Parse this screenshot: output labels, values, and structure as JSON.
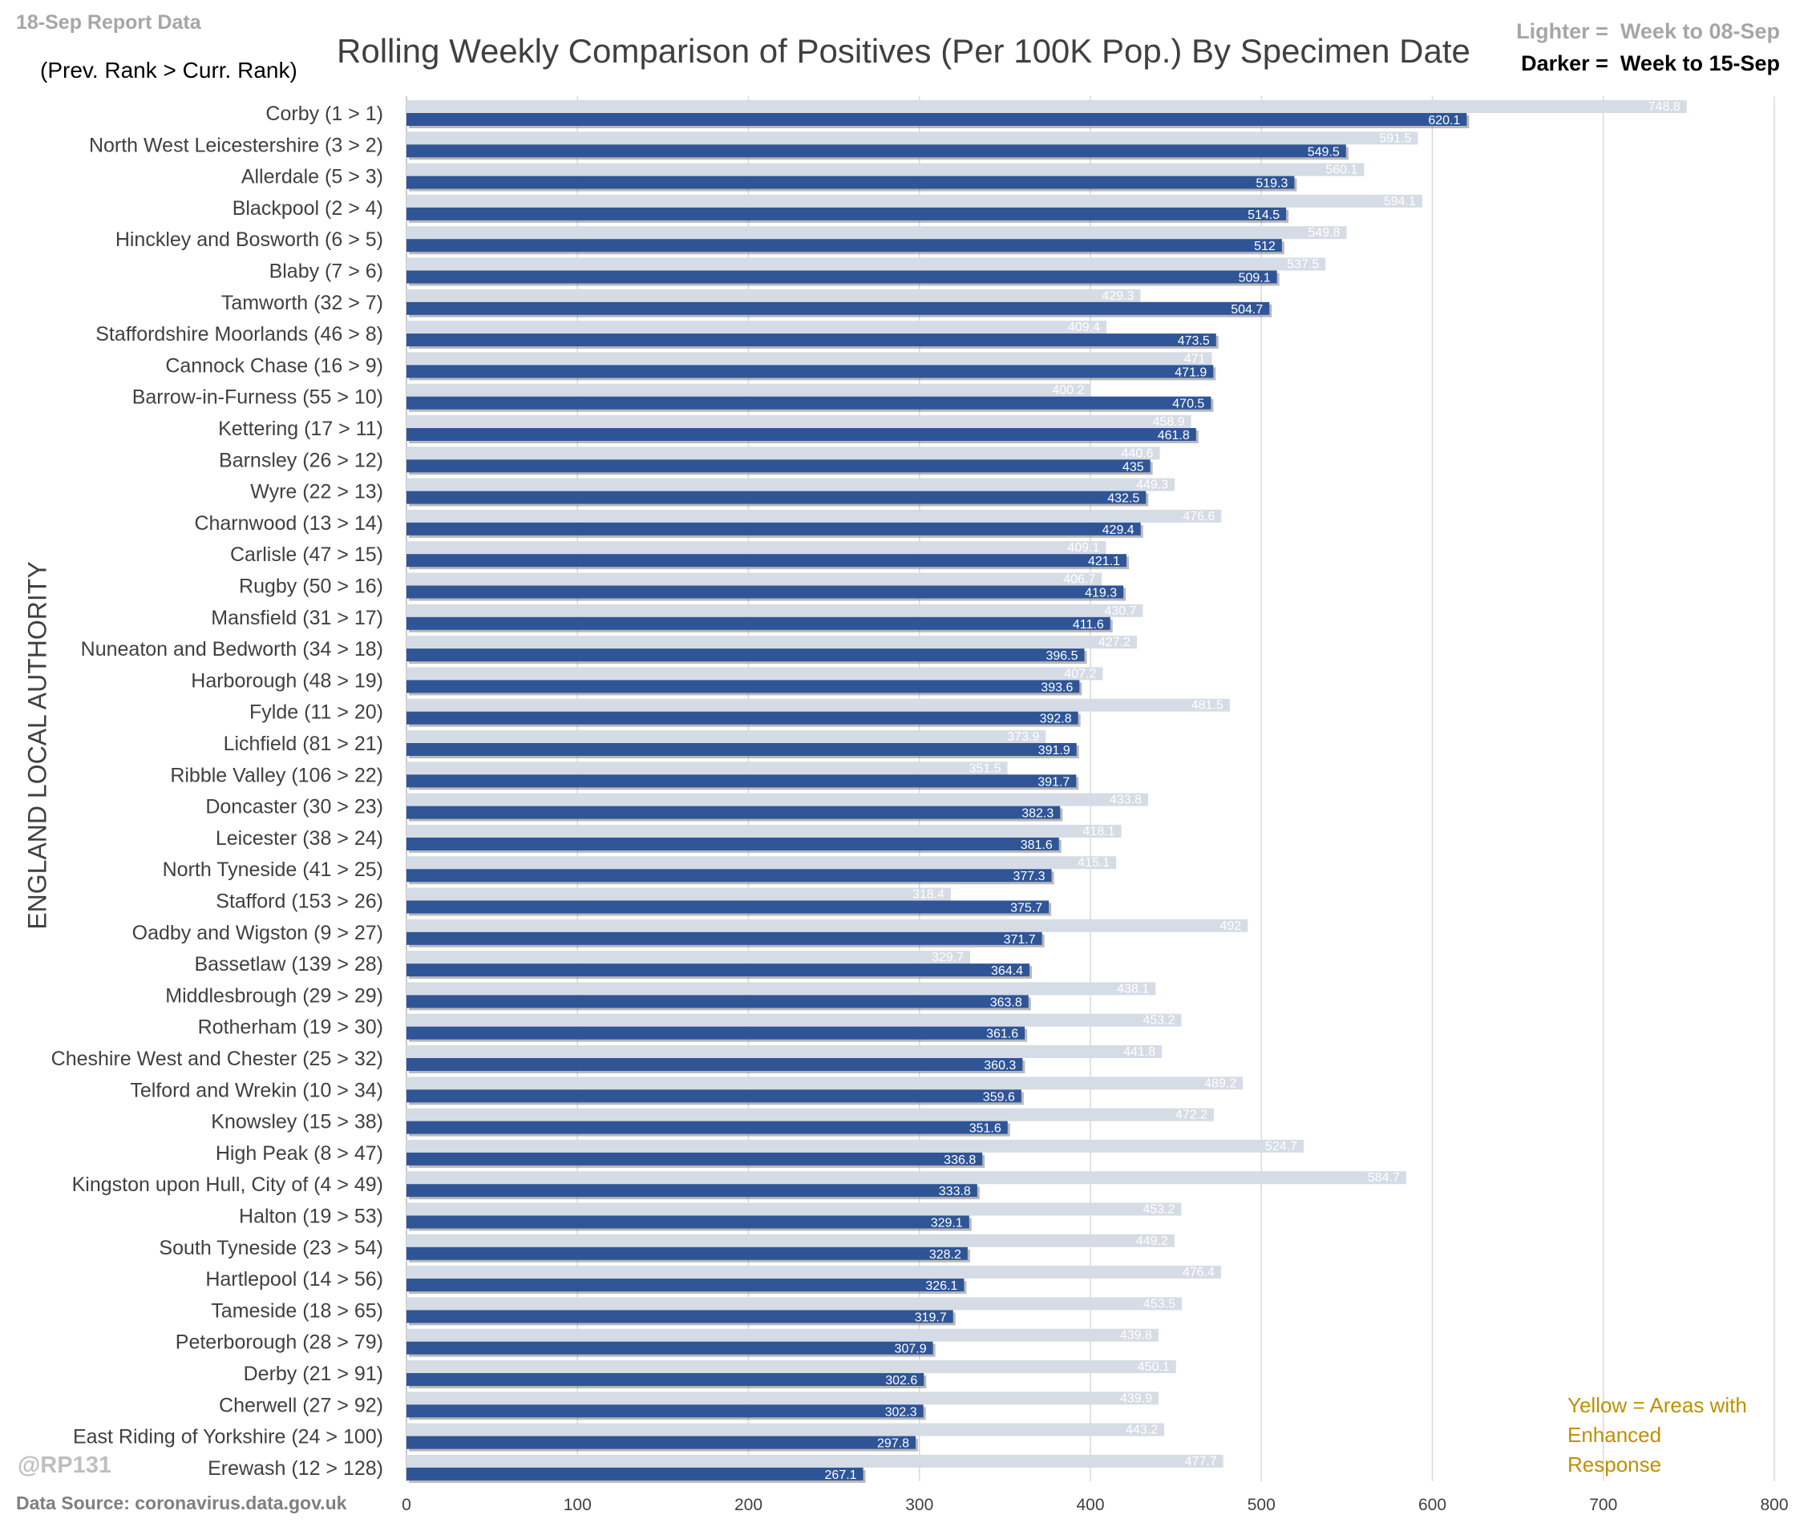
{
  "header": {
    "report_label": "18-Sep Report Data",
    "rank_note": "(Prev. Rank > Curr. Rank)",
    "title": "Rolling Weekly Comparison of Positives  (Per 100K Pop.) By Specimen Date",
    "legend_lighter": "Lighter =  Week to 08-Sep",
    "legend_darker": "Darker =  Week to 15-Sep"
  },
  "notes": {
    "yellow": "Yellow = Areas with Enhanced Response",
    "handle": "@RP131",
    "source": "Data Source: coronavirus.data.gov.uk"
  },
  "colors": {
    "lighter": "#d6dce5",
    "darker": "#2f5597",
    "gridline": "#d9d9d9",
    "yellow_note": "#bf9000"
  },
  "chart_data": {
    "type": "bar",
    "orientation": "horizontal",
    "title": "Rolling Weekly Comparison of Positives  (Per 100K Pop.) By Specimen Date",
    "ylabel": "ENGLAND LOCAL AUTHORITY",
    "xlabel": "",
    "xlim": [
      0,
      800
    ],
    "xticks": [
      0,
      100,
      200,
      300,
      400,
      500,
      600,
      700,
      800
    ],
    "grid": true,
    "categories": [
      "Corby (1 > 1)",
      "North West Leicestershire (3 > 2)",
      "Allerdale (5 > 3)",
      "Blackpool (2 > 4)",
      "Hinckley and Bosworth (6 > 5)",
      "Blaby (7 > 6)",
      "Tamworth (32 > 7)",
      "Staffordshire Moorlands (46 > 8)",
      "Cannock Chase (16 > 9)",
      "Barrow-in-Furness (55 > 10)",
      "Kettering (17 > 11)",
      "Barnsley (26 > 12)",
      "Wyre (22 > 13)",
      "Charnwood (13 > 14)",
      "Carlisle (47 > 15)",
      "Rugby (50 > 16)",
      "Mansfield (31 > 17)",
      "Nuneaton and Bedworth (34 > 18)",
      "Harborough (48 > 19)",
      "Fylde (11 > 20)",
      "Lichfield (81 > 21)",
      "Ribble Valley (106 > 22)",
      "Doncaster (30 > 23)",
      "Leicester (38 > 24)",
      "North Tyneside (41 > 25)",
      "Stafford (153 > 26)",
      "Oadby and Wigston (9 > 27)",
      "Bassetlaw (139 > 28)",
      "Middlesbrough (29 > 29)",
      "Rotherham (19 > 30)",
      "Cheshire West and Chester (25 > 32)",
      "Telford and Wrekin (10 > 34)",
      "Knowsley (15 > 38)",
      "High Peak (8 > 47)",
      "Kingston upon Hull, City of (4 > 49)",
      "Halton (19 > 53)",
      "South Tyneside (23 > 54)",
      "Hartlepool (14 > 56)",
      "Tameside (18 > 65)",
      "Peterborough (28 > 79)",
      "Derby (21 > 91)",
      "Cherwell (27 > 92)",
      "East Riding of Yorkshire (24 > 100)",
      "Erewash (12 > 128)"
    ],
    "series": [
      {
        "name": "Week to 08-Sep",
        "values": [
          "748.8",
          "591.5",
          "560.1",
          "594.1",
          "549.8",
          "537.5",
          "429.3",
          "409.4",
          "471",
          "400.2",
          "458.9",
          "440.6",
          "449.3",
          "476.6",
          "409.1",
          "406.7",
          "430.7",
          "427.2",
          "407.2",
          "481.5",
          "373.9",
          "351.5",
          "433.8",
          "418.1",
          "415.1",
          "318.4",
          "492",
          "329.7",
          "438.1",
          "453.2",
          "441.8",
          "489.2",
          "472.2",
          "524.7",
          "584.7",
          "453.2",
          "449.2",
          "476.4",
          "453.5",
          "439.8",
          "450.1",
          "439.9",
          "443.2",
          "477.7"
        ]
      },
      {
        "name": "Week to 15-Sep",
        "values": [
          "620.1",
          "549.5",
          "519.3",
          "514.5",
          "512",
          "509.1",
          "504.7",
          "473.5",
          "471.9",
          "470.5",
          "461.8",
          "435",
          "432.5",
          "429.4",
          "421.1",
          "419.3",
          "411.6",
          "396.5",
          "393.6",
          "392.8",
          "391.9",
          "391.7",
          "382.3",
          "381.6",
          "377.3",
          "375.7",
          "371.7",
          "364.4",
          "363.8",
          "361.6",
          "360.3",
          "359.6",
          "351.6",
          "336.8",
          "333.8",
          "329.1",
          "328.2",
          "326.1",
          "319.7",
          "307.9",
          "302.6",
          "302.3",
          "297.8",
          "267.1"
        ]
      }
    ]
  }
}
